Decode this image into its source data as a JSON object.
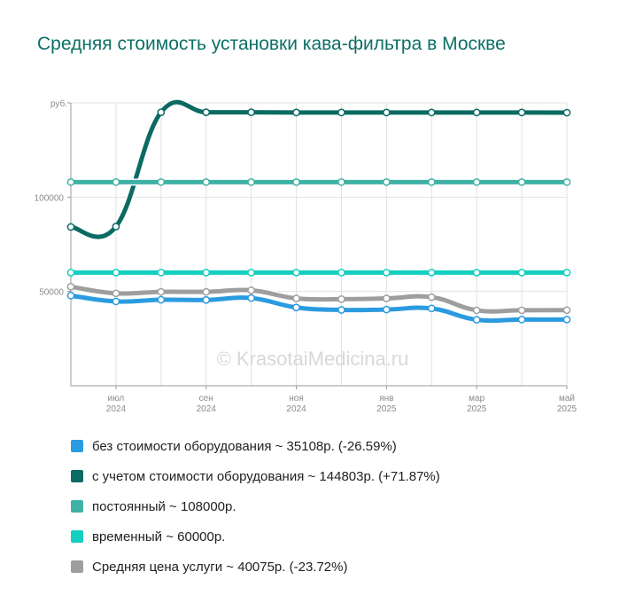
{
  "chart_data": {
    "type": "line",
    "title": "Средняя стоимость установки кава-фильтра в Москве",
    "ylabel": "руб.",
    "y_ticks": [
      {
        "value": 50000,
        "label": "50000"
      },
      {
        "value": 100000,
        "label": "100000"
      }
    ],
    "x_ticks": [
      {
        "index": 1,
        "month": "июл",
        "year": "2024"
      },
      {
        "index": 3,
        "month": "сен",
        "year": "2024"
      },
      {
        "index": 5,
        "month": "ноя",
        "year": "2024"
      },
      {
        "index": 7,
        "month": "янв",
        "year": "2025"
      },
      {
        "index": 9,
        "month": "мар",
        "year": "2025"
      },
      {
        "index": 11,
        "month": "май",
        "year": "2025"
      }
    ],
    "ylim": [
      0,
      150000
    ],
    "x_count": 12,
    "grid": true,
    "legend_position": "bottom",
    "watermark": "© KrasotaiMedicina.ru",
    "series": [
      {
        "name": "без стоимости оборудования ~ 35108р. (-26.59%)",
        "color": "#2b9be0",
        "values": [
          47800,
          44700,
          45600,
          45500,
          46500,
          41500,
          40200,
          40400,
          41000,
          35000,
          35100,
          35108
        ]
      },
      {
        "name": "с учетом стоимости оборудования ~ 144803р. (+71.87%)",
        "color": "#0a6b62",
        "values": [
          84200,
          84400,
          145000,
          145000,
          145000,
          144900,
          144900,
          144900,
          144900,
          144900,
          144900,
          144803
        ]
      },
      {
        "name": "постоянный ~ 108000р.",
        "color": "#3fb1a6",
        "values": [
          108000,
          108000,
          108000,
          108000,
          108000,
          108000,
          108000,
          108000,
          108000,
          108000,
          108000,
          108000
        ]
      },
      {
        "name": "временный ~ 60000р.",
        "color": "#12cfc0",
        "values": [
          60000,
          60000,
          60000,
          60000,
          60000,
          60000,
          60000,
          60000,
          60000,
          60000,
          60000,
          60000
        ]
      },
      {
        "name": "Средняя цена услуги ~ 40075р. (-23.72%)",
        "color": "#9e9e9e",
        "values": [
          52500,
          49000,
          49800,
          49800,
          50600,
          46300,
          45900,
          46300,
          47000,
          40000,
          40000,
          40075
        ]
      }
    ]
  }
}
